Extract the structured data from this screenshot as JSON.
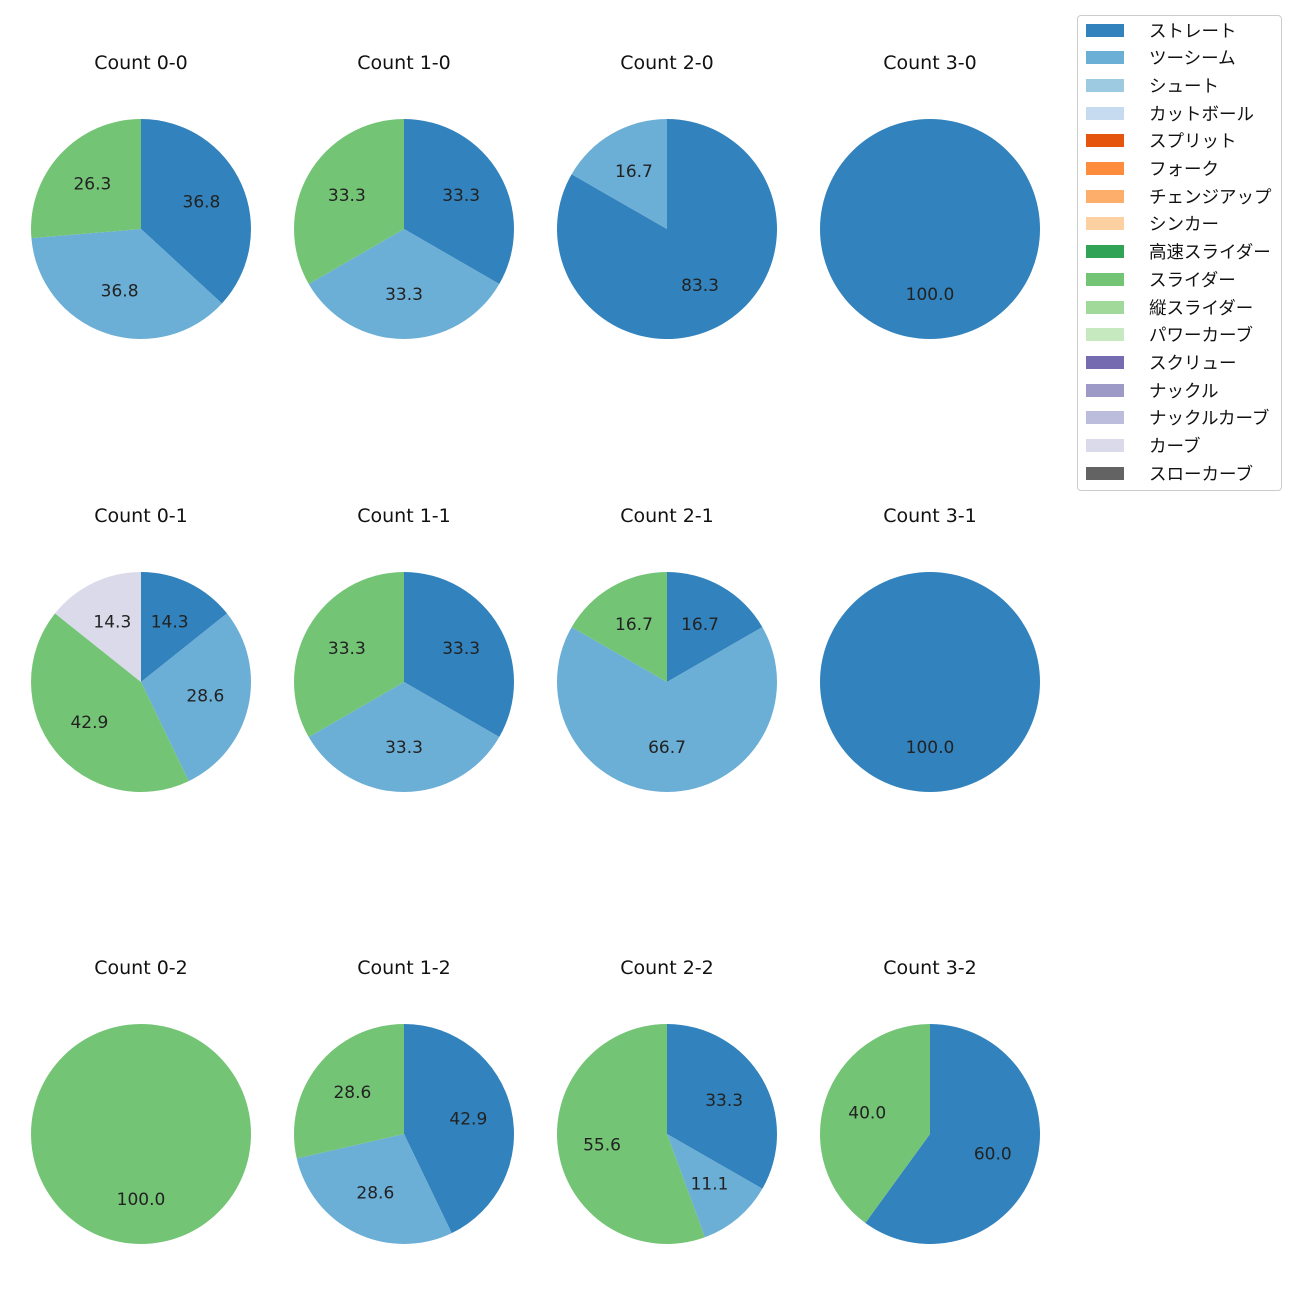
{
  "chart_data": {
    "type": "pie",
    "legend": {
      "placement": "top-right",
      "entries": [
        {
          "name": "ストレート",
          "color": "#3182bd"
        },
        {
          "name": "ツーシーム",
          "color": "#6baed6"
        },
        {
          "name": "シュート",
          "color": "#9ecae1"
        },
        {
          "name": "カットボール",
          "color": "#c6dbef"
        },
        {
          "name": "スプリット",
          "color": "#e6550d"
        },
        {
          "name": "フォーク",
          "color": "#fd8d3c"
        },
        {
          "name": "チェンジアップ",
          "color": "#fdae6b"
        },
        {
          "name": "シンカー",
          "color": "#fdd0a2"
        },
        {
          "name": "高速スライダー",
          "color": "#31a354"
        },
        {
          "name": "スライダー",
          "color": "#74c476"
        },
        {
          "name": "縦スライダー",
          "color": "#a1d99b"
        },
        {
          "name": "パワーカーブ",
          "color": "#c7e9c0"
        },
        {
          "name": "スクリュー",
          "color": "#756bb1"
        },
        {
          "name": "ナックル",
          "color": "#9e9ac8"
        },
        {
          "name": "ナックルカーブ",
          "color": "#bcbddc"
        },
        {
          "name": "カーブ",
          "color": "#dadaeb"
        },
        {
          "name": "スローカーブ",
          "color": "#636363"
        }
      ]
    },
    "pies": [
      {
        "title": "Count 0-0",
        "slices": [
          {
            "pitch": "ストレート",
            "value": 36.8
          },
          {
            "pitch": "ツーシーム",
            "value": 36.8
          },
          {
            "pitch": "スライダー",
            "value": 26.3
          }
        ]
      },
      {
        "title": "Count 1-0",
        "slices": [
          {
            "pitch": "ストレート",
            "value": 33.3
          },
          {
            "pitch": "ツーシーム",
            "value": 33.3
          },
          {
            "pitch": "スライダー",
            "value": 33.3
          }
        ]
      },
      {
        "title": "Count 2-0",
        "slices": [
          {
            "pitch": "ストレート",
            "value": 83.3
          },
          {
            "pitch": "ツーシーム",
            "value": 16.7
          }
        ]
      },
      {
        "title": "Count 3-0",
        "slices": [
          {
            "pitch": "ストレート",
            "value": 100.0
          }
        ]
      },
      {
        "title": "Count 0-1",
        "slices": [
          {
            "pitch": "ストレート",
            "value": 14.3
          },
          {
            "pitch": "ツーシーム",
            "value": 28.6
          },
          {
            "pitch": "スライダー",
            "value": 42.9
          },
          {
            "pitch": "カーブ",
            "value": 14.3
          }
        ]
      },
      {
        "title": "Count 1-1",
        "slices": [
          {
            "pitch": "ストレート",
            "value": 33.3
          },
          {
            "pitch": "ツーシーム",
            "value": 33.3
          },
          {
            "pitch": "スライダー",
            "value": 33.3
          }
        ]
      },
      {
        "title": "Count 2-1",
        "slices": [
          {
            "pitch": "ストレート",
            "value": 16.7
          },
          {
            "pitch": "ツーシーム",
            "value": 66.7
          },
          {
            "pitch": "スライダー",
            "value": 16.7
          }
        ]
      },
      {
        "title": "Count 3-1",
        "slices": [
          {
            "pitch": "ストレート",
            "value": 100.0
          }
        ]
      },
      {
        "title": "Count 0-2",
        "slices": [
          {
            "pitch": "スライダー",
            "value": 100.0
          }
        ]
      },
      {
        "title": "Count 1-2",
        "slices": [
          {
            "pitch": "ストレート",
            "value": 42.9
          },
          {
            "pitch": "ツーシーム",
            "value": 28.6
          },
          {
            "pitch": "スライダー",
            "value": 28.6
          }
        ]
      },
      {
        "title": "Count 2-2",
        "slices": [
          {
            "pitch": "ストレート",
            "value": 33.3
          },
          {
            "pitch": "ツーシーム",
            "value": 11.1
          },
          {
            "pitch": "スライダー",
            "value": 55.6
          }
        ]
      },
      {
        "title": "Count 3-2",
        "slices": [
          {
            "pitch": "ストレート",
            "value": 60.0
          },
          {
            "pitch": "スライダー",
            "value": 40.0
          }
        ]
      }
    ]
  }
}
